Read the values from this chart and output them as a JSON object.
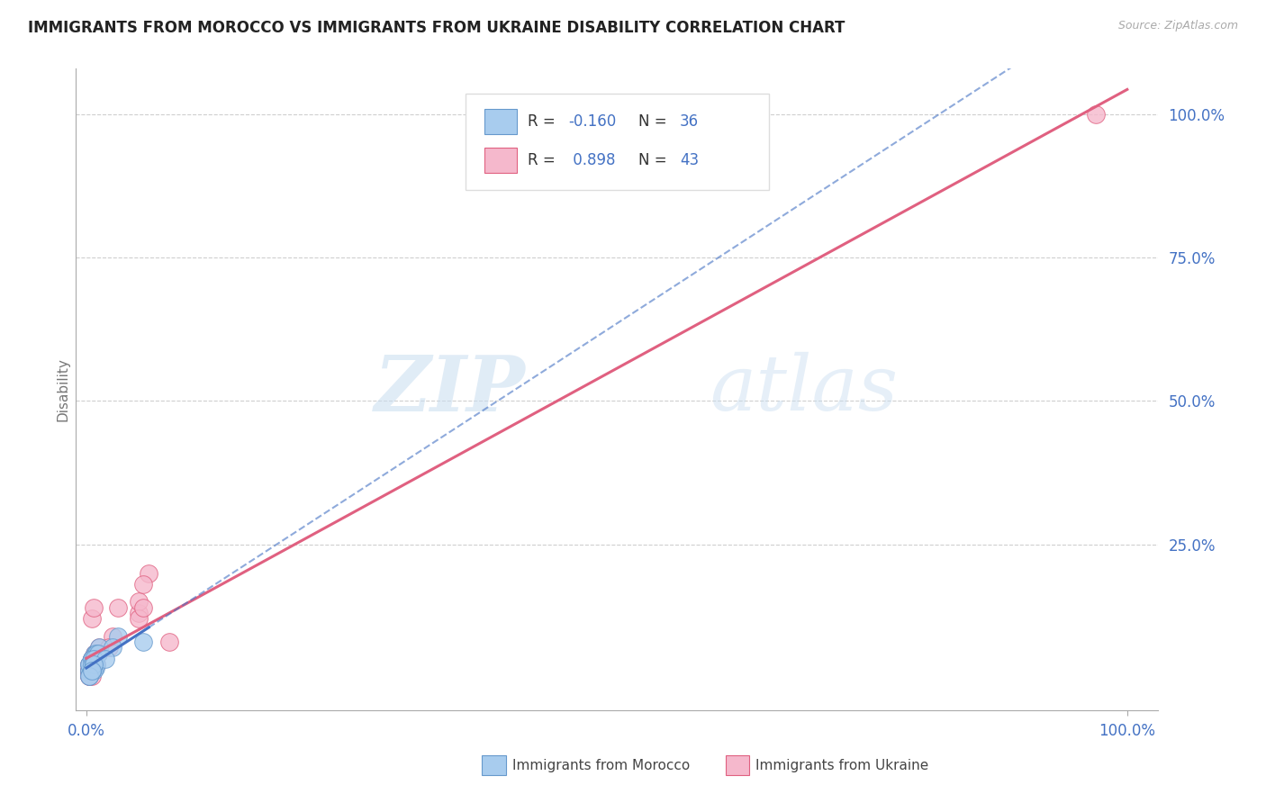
{
  "title": "IMMIGRANTS FROM MOROCCO VS IMMIGRANTS FROM UKRAINE DISABILITY CORRELATION CHART",
  "source": "Source: ZipAtlas.com",
  "ylabel": "Disability",
  "y_tick_labels": [
    "25.0%",
    "50.0%",
    "75.0%",
    "100.0%"
  ],
  "y_tick_values": [
    0.25,
    0.5,
    0.75,
    1.0
  ],
  "x_tick_labels": [
    "0.0%",
    "100.0%"
  ],
  "x_tick_values": [
    0.0,
    1.0
  ],
  "xlim": [
    -0.01,
    1.03
  ],
  "ylim": [
    -0.04,
    1.08
  ],
  "morocco_R": -0.16,
  "morocco_N": 36,
  "ukraine_R": 0.898,
  "ukraine_N": 43,
  "morocco_dot_color": "#A8CCEE",
  "morocco_edge_color": "#6699CC",
  "ukraine_dot_color": "#F5B8CC",
  "ukraine_edge_color": "#E06080",
  "morocco_line_color": "#4472C4",
  "ukraine_line_color": "#E06080",
  "legend_label_morocco": "Immigrants from Morocco",
  "legend_label_ukraine": "Immigrants from Ukraine",
  "watermark_zip": "ZIP",
  "watermark_atlas": "atlas",
  "background_color": "#FFFFFF",
  "grid_color": "#BBBBBB",
  "morocco_x": [
    0.003,
    0.005,
    0.007,
    0.008,
    0.01,
    0.005,
    0.003,
    0.007,
    0.005,
    0.009,
    0.012,
    0.005,
    0.003,
    0.007,
    0.01,
    0.005,
    0.007,
    0.009,
    0.003,
    0.005,
    0.007,
    0.005,
    0.003,
    0.009,
    0.007,
    0.011,
    0.005,
    0.007,
    0.055,
    0.03,
    0.025,
    0.018,
    0.005,
    0.007,
    0.003,
    0.005
  ],
  "morocco_y": [
    0.04,
    0.05,
    0.035,
    0.06,
    0.04,
    0.05,
    0.03,
    0.04,
    0.05,
    0.06,
    0.07,
    0.04,
    0.03,
    0.05,
    0.06,
    0.03,
    0.04,
    0.035,
    0.04,
    0.05,
    0.03,
    0.04,
    0.02,
    0.05,
    0.04,
    0.06,
    0.03,
    0.05,
    0.08,
    0.09,
    0.07,
    0.05,
    0.03,
    0.04,
    0.02,
    0.03
  ],
  "ukraine_x": [
    0.003,
    0.005,
    0.007,
    0.008,
    0.01,
    0.005,
    0.003,
    0.007,
    0.005,
    0.009,
    0.012,
    0.005,
    0.003,
    0.03,
    0.01,
    0.005,
    0.007,
    0.05,
    0.003,
    0.005,
    0.06,
    0.005,
    0.003,
    0.009,
    0.007,
    0.011,
    0.005,
    0.007,
    0.08,
    0.025,
    0.022,
    0.05,
    0.005,
    0.007,
    0.055,
    0.005,
    0.007,
    0.009,
    0.005,
    0.003,
    0.05,
    0.055,
    0.97
  ],
  "ukraine_y": [
    0.03,
    0.04,
    0.05,
    0.06,
    0.04,
    0.05,
    0.03,
    0.04,
    0.05,
    0.06,
    0.07,
    0.04,
    0.03,
    0.14,
    0.06,
    0.12,
    0.14,
    0.13,
    0.04,
    0.05,
    0.2,
    0.04,
    0.02,
    0.05,
    0.04,
    0.06,
    0.03,
    0.05,
    0.08,
    0.09,
    0.07,
    0.15,
    0.03,
    0.04,
    0.18,
    0.02,
    0.05,
    0.06,
    0.03,
    0.02,
    0.12,
    0.14,
    1.0
  ]
}
